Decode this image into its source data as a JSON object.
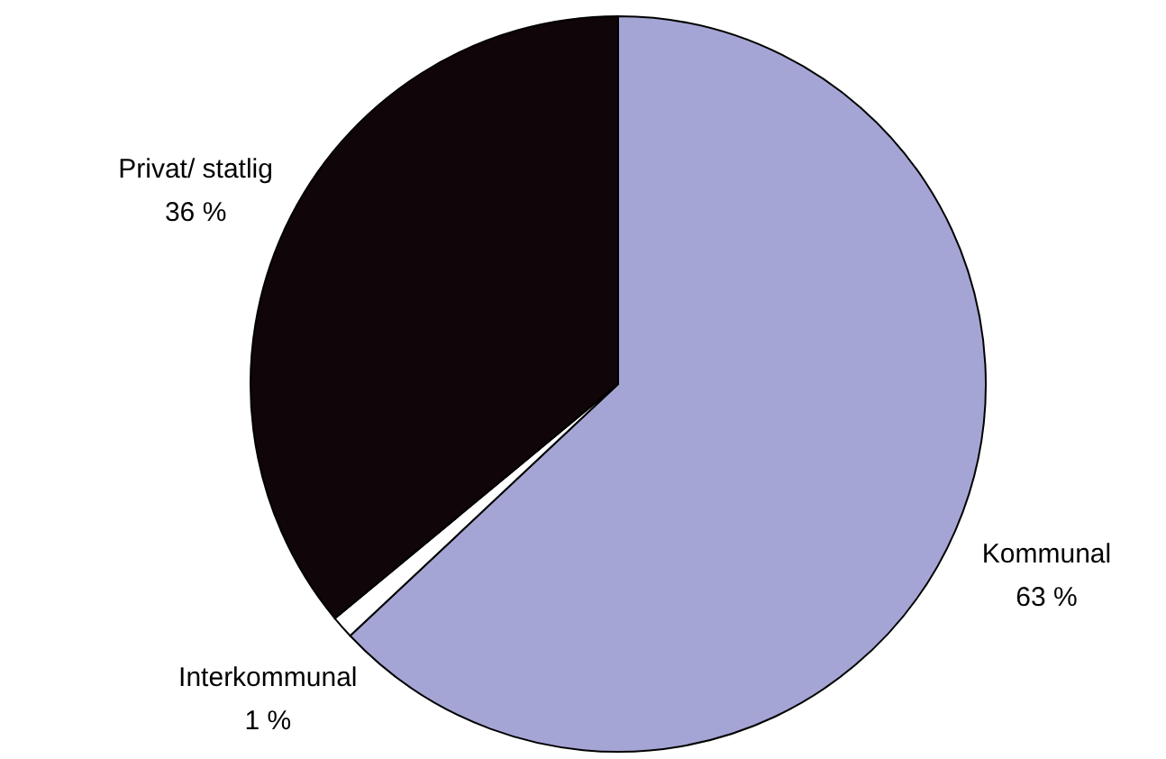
{
  "chart_data": {
    "type": "pie",
    "categories": [
      "Kommunal",
      "Interkommunal",
      "Privat/ statlig"
    ],
    "values": [
      63,
      1,
      36
    ],
    "colors": [
      "#a5a5d5",
      "#ffffff",
      "#100508"
    ],
    "value_labels": [
      "63 %",
      "1 %",
      "36 %"
    ]
  }
}
